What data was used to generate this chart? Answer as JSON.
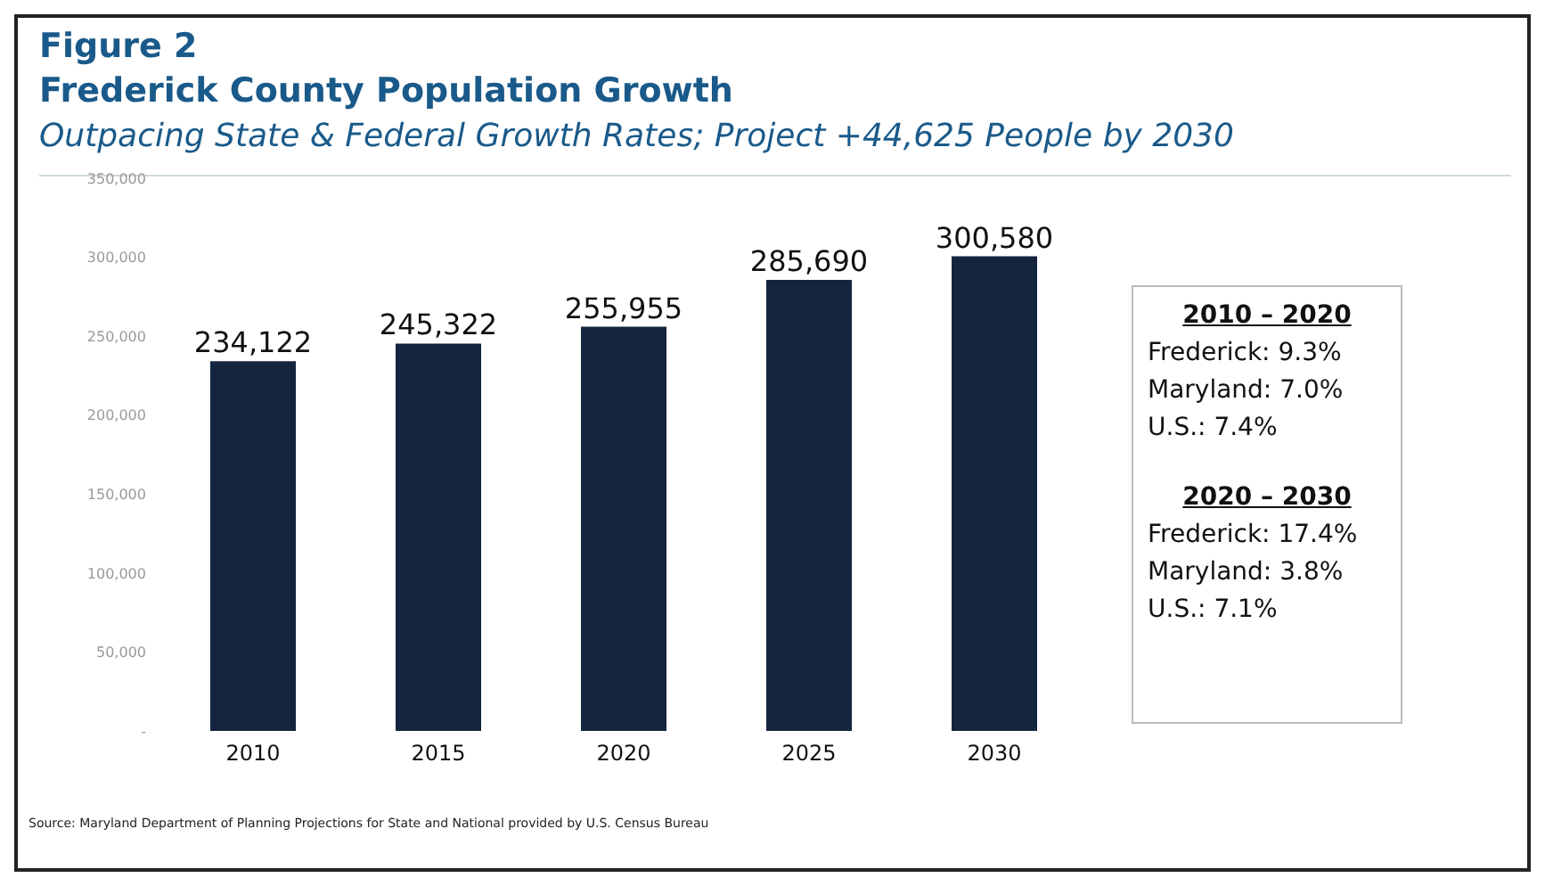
{
  "chart_data": {
    "type": "bar",
    "title": "Figure 2",
    "subtitle": "Frederick County Population Growth",
    "categories": [
      "2010",
      "2015",
      "2020",
      "2025",
      "2030"
    ],
    "values": [
      234122,
      245322,
      255955,
      285690,
      300580
    ],
    "color": "#15253f",
    "value_labels": [
      "234,122",
      "245,322",
      "255,955",
      "285,690",
      "300,580"
    ],
    "ylim": [
      0,
      350000
    ],
    "yticks": [
      {
        "value": 0,
        "label": "-"
      },
      {
        "value": 50000,
        "label": "50,000"
      },
      {
        "value": 100000,
        "label": "100,000"
      },
      {
        "value": 150000,
        "label": "150,000"
      },
      {
        "value": 200000,
        "label": "200,000"
      },
      {
        "value": 250000,
        "label": "250,000"
      },
      {
        "value": 300000,
        "label": "300,000"
      },
      {
        "value": 350000,
        "label": "350,000"
      }
    ],
    "grid": false,
    "legend": false,
    "annotations": [
      "Outpacing State & Federal Growth Rates; Project +44,625 People by 2030",
      "2010 – 2020",
      "Frederick:  9.3%",
      "Maryland: 7.0%",
      "U.S.: 7.4%",
      "2020 – 2030",
      "Frederick:  17.4%",
      "Maryland: 3.8%",
      "U.S.: 7.1%",
      "Source: Maryland Department of Planning Projections for State and National provided by U.S. Census Bureau"
    ]
  }
}
